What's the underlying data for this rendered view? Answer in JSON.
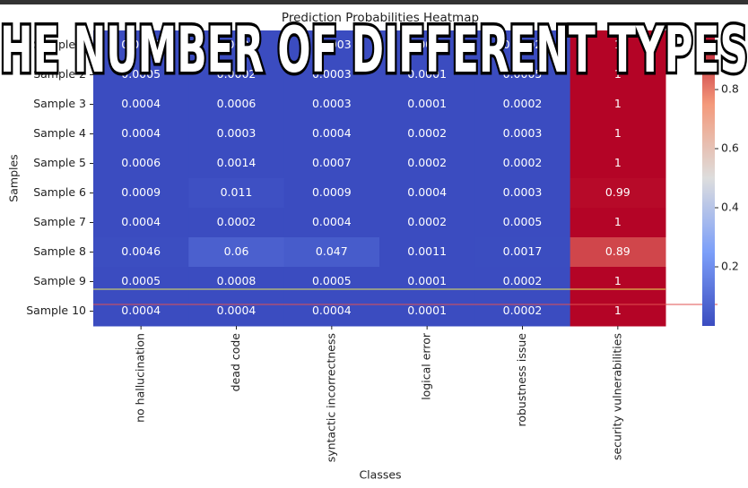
{
  "overlay_text": "HE NUMBER OF DIFFERENT TYPES",
  "chart_data": {
    "type": "heatmap",
    "title": "Prediction Probabilities Heatmap",
    "xlabel": "Classes",
    "ylabel": "Samples",
    "categories": [
      "no hallucination",
      "dead code",
      "syntactic incorrectness",
      "logical error",
      "robustness issue",
      "security vulnerabilities"
    ],
    "rows": [
      "Sample 1",
      "Sample 2",
      "Sample 3",
      "Sample 4",
      "Sample 5",
      "Sample 6",
      "Sample 7",
      "Sample 8",
      "Sample 9",
      "Sample 10"
    ],
    "values": [
      [
        0.0004,
        0.0003,
        0.0003,
        0.0001,
        0.0002,
        1
      ],
      [
        0.0005,
        0.0002,
        0.0003,
        0.0001,
        0.0005,
        1
      ],
      [
        0.0004,
        0.0006,
        0.0003,
        0.0001,
        0.0002,
        1
      ],
      [
        0.0004,
        0.0003,
        0.0004,
        0.0002,
        0.0003,
        1
      ],
      [
        0.0006,
        0.0014,
        0.0007,
        0.0002,
        0.0002,
        1
      ],
      [
        0.0009,
        0.011,
        0.0009,
        0.0004,
        0.0003,
        0.99
      ],
      [
        0.0004,
        0.0002,
        0.0004,
        0.0002,
        0.0005,
        1
      ],
      [
        0.0046,
        0.06,
        0.047,
        0.0011,
        0.0017,
        0.89
      ],
      [
        0.0005,
        0.0008,
        0.0005,
        0.0001,
        0.0002,
        1
      ],
      [
        0.0004,
        0.0004,
        0.0004,
        0.0001,
        0.0002,
        1
      ]
    ],
    "colormap": "coolwarm",
    "clim": [
      0,
      1
    ],
    "cticks": [
      0.2,
      0.4,
      0.6,
      0.8
    ]
  }
}
